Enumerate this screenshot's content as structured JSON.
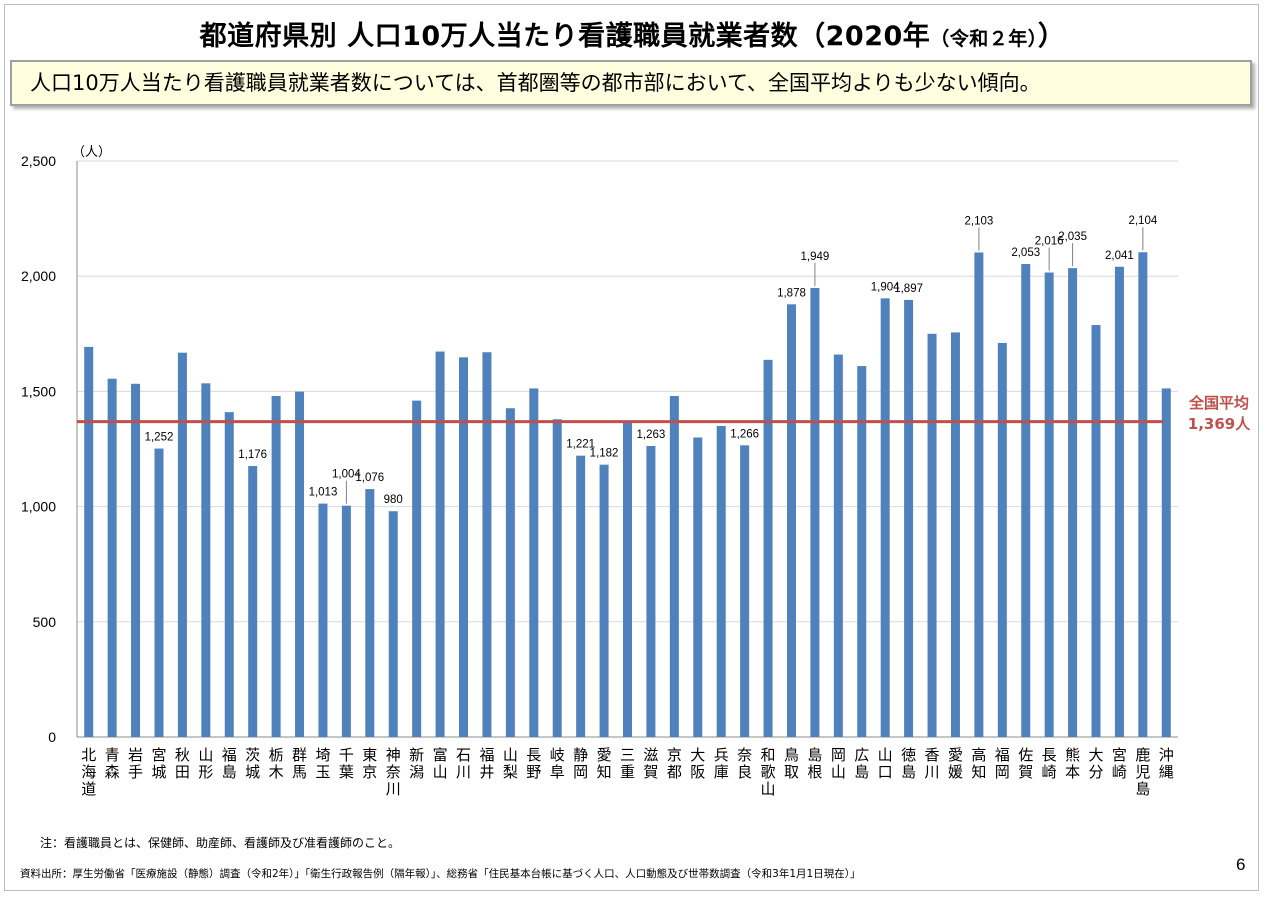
{
  "title": {
    "main": "都道府県別 人口10万人当たり看護職員就業者数（2020年",
    "sub": "（令和２年）",
    "close": "）"
  },
  "subtitle": "人口10万人当たり看護職員就業者数については、首都圏等の都市部において、全国平均よりも少ない傾向。",
  "note": "注：看護職員とは、保健師、助産師、看護師及び准看護師のこと。",
  "source": "資料出所：厚生労働省「医療施設（静態）調査（令和2年）」「衛生行政報告例（隔年報）」、総務省「住民基本台帳に基づく人口、人口動態及び世帯数調査（令和3年1月1日現在）」",
  "page_number": "6",
  "colors": {
    "bar": "#4f81bd",
    "average_line": "#c0504d",
    "grid": "#d9d9d9"
  },
  "chart_data": {
    "type": "bar",
    "ylabel": "（人）",
    "ylim": [
      0,
      2500
    ],
    "yticks": [
      0,
      500,
      1000,
      1500,
      2000,
      2500
    ],
    "ytick_labels": [
      "0",
      "500",
      "1,000",
      "1,500",
      "2,000",
      "2,500"
    ],
    "grid": true,
    "categories": [
      "北海道",
      "青森",
      "岩手",
      "宮城",
      "秋田",
      "山形",
      "福島",
      "茨城",
      "栃木",
      "群馬",
      "埼玉",
      "千葉",
      "東京",
      "神奈川",
      "新潟",
      "富山",
      "石川",
      "福井",
      "山梨",
      "長野",
      "岐阜",
      "静岡",
      "愛知",
      "三重",
      "滋賀",
      "京都",
      "大阪",
      "兵庫",
      "奈良",
      "和歌山",
      "鳥取",
      "島根",
      "岡山",
      "広島",
      "山口",
      "徳島",
      "香川",
      "愛媛",
      "高知",
      "福岡",
      "佐賀",
      "長崎",
      "熊本",
      "大分",
      "宮崎",
      "鹿児島",
      "沖縄"
    ],
    "values": [
      1693,
      1555,
      1533,
      1252,
      1668,
      1535,
      1410,
      1176,
      1480,
      1499,
      1013,
      1004,
      1076,
      980,
      1460,
      1673,
      1648,
      1670,
      1427,
      1513,
      1379,
      1221,
      1182,
      1369,
      1263,
      1480,
      1300,
      1350,
      1266,
      1637,
      1878,
      1949,
      1660,
      1610,
      1904,
      1897,
      1750,
      1756,
      2103,
      1710,
      2053,
      2016,
      2035,
      1788,
      2041,
      2104,
      1513
    ],
    "data_labels": [
      {
        "index": 3,
        "text": "1,252"
      },
      {
        "index": 7,
        "text": "1,176"
      },
      {
        "index": 10,
        "text": "1,013"
      },
      {
        "index": 11,
        "text": "1,004"
      },
      {
        "index": 12,
        "text": "1,076"
      },
      {
        "index": 13,
        "text": "980"
      },
      {
        "index": 21,
        "text": "1,221"
      },
      {
        "index": 22,
        "text": "1,182"
      },
      {
        "index": 24,
        "text": "1,263"
      },
      {
        "index": 28,
        "text": "1,266"
      },
      {
        "index": 30,
        "text": "1,878"
      },
      {
        "index": 31,
        "text": "1,949"
      },
      {
        "index": 34,
        "text": "1,904"
      },
      {
        "index": 35,
        "text": "1,897"
      },
      {
        "index": 38,
        "text": "2,103"
      },
      {
        "index": 40,
        "text": "2,053"
      },
      {
        "index": 41,
        "text": "2,016"
      },
      {
        "index": 42,
        "text": "2,035"
      },
      {
        "index": 44,
        "text": "2,041"
      },
      {
        "index": 45,
        "text": "2,104"
      }
    ],
    "average": {
      "value": 1369,
      "label_line1": "全国平均",
      "label_line2": "1,369人"
    }
  }
}
